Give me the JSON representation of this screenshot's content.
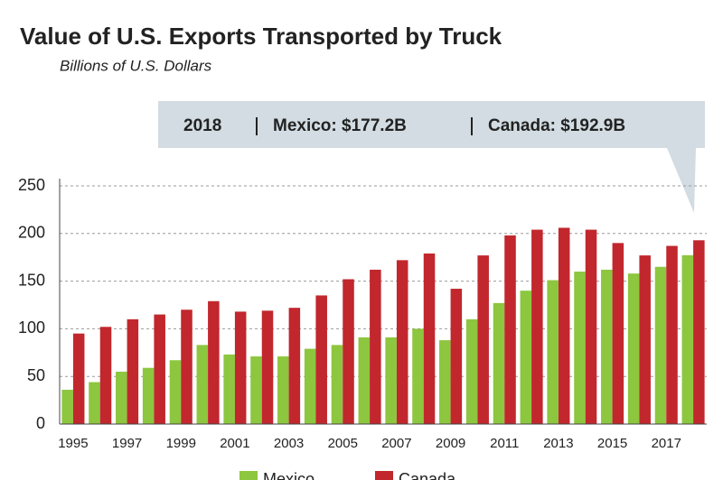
{
  "chart_data": {
    "type": "bar",
    "title": "Value of U.S. Exports Transported by Truck",
    "subtitle": "Billions of U.S. Dollars",
    "annotation": {
      "year": "2018",
      "items": [
        "Mexico: $177.2B",
        "Canada: $192.9B"
      ]
    },
    "categories": [
      "1995",
      null,
      "1997",
      null,
      "1999",
      null,
      "2001",
      null,
      "2003",
      null,
      "2005",
      null,
      "2007",
      null,
      "2009",
      null,
      "2011",
      null,
      "2013",
      null,
      "2015",
      null,
      "2017",
      null
    ],
    "series": [
      {
        "name": "Mexico",
        "color": "#8dc63f",
        "values": [
          36,
          44,
          55,
          59,
          67,
          83,
          73,
          71,
          71,
          79,
          83,
          91,
          91,
          100,
          88,
          110,
          127,
          140,
          151,
          160,
          162,
          158,
          165,
          177.2
        ]
      },
      {
        "name": "Canada",
        "color": "#c1272d",
        "values": [
          95,
          102,
          110,
          115,
          120,
          129,
          118,
          119,
          122,
          135,
          152,
          162,
          172,
          179,
          142,
          177,
          198,
          204,
          206,
          204,
          190,
          177,
          187,
          192.9
        ]
      }
    ],
    "ylim": [
      0,
      250
    ],
    "yticks": [
      0,
      50,
      100,
      150,
      200,
      250
    ],
    "grid": true
  }
}
